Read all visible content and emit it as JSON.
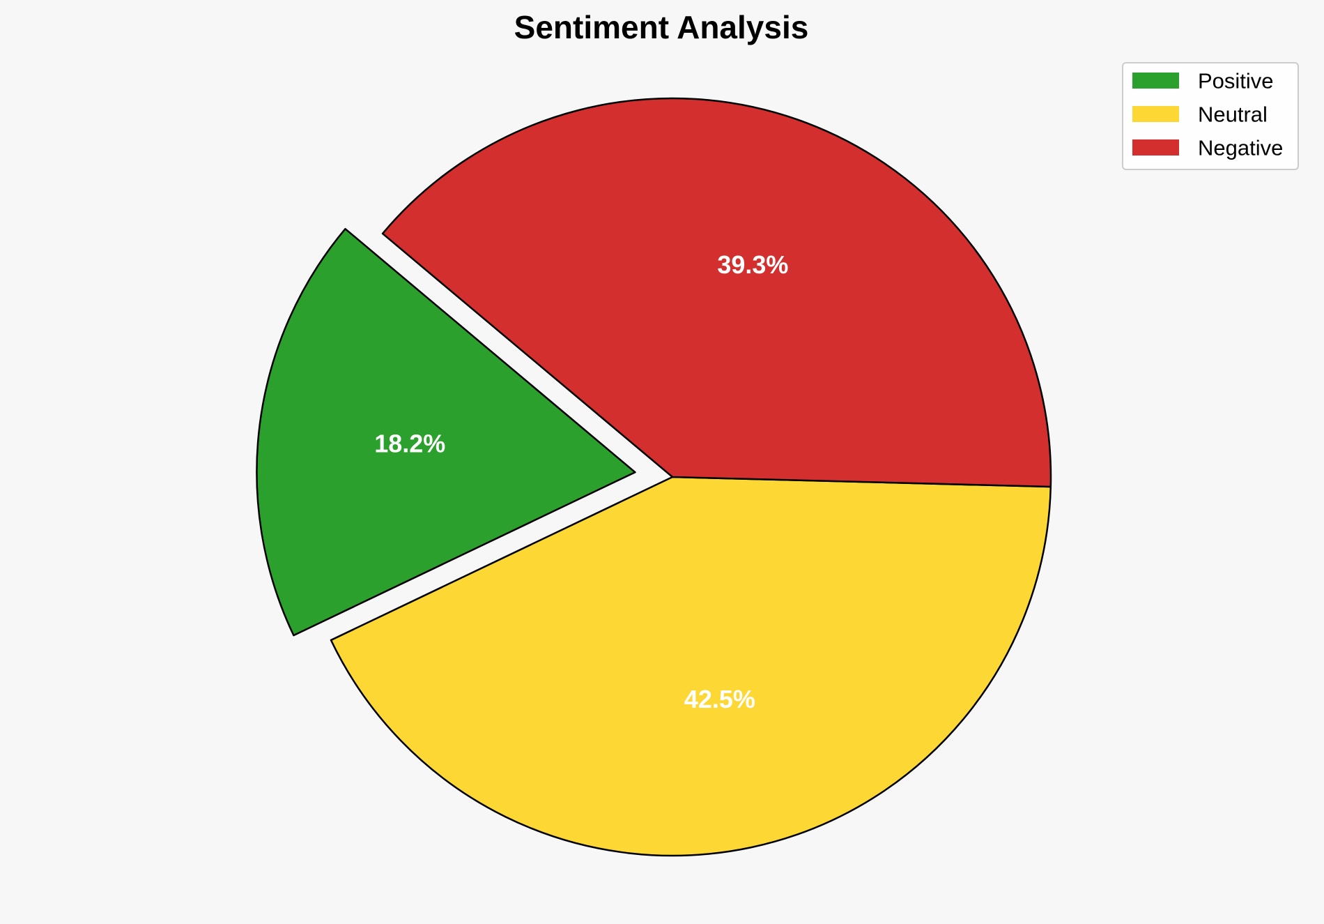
{
  "chart_data": {
    "type": "pie",
    "title": "Sentiment Analysis",
    "categories": [
      "Positive",
      "Neutral",
      "Negative"
    ],
    "values": [
      18.2,
      42.5,
      39.3
    ],
    "labels": [
      "18.2%",
      "42.5%",
      "39.3%"
    ],
    "colors": [
      "#2ca02c",
      "#fdd835",
      "#d32f2f"
    ],
    "exploded": [
      "Positive"
    ],
    "legend_position": "top-right",
    "start_angle_deg": 140,
    "direction": "counterclockwise"
  }
}
